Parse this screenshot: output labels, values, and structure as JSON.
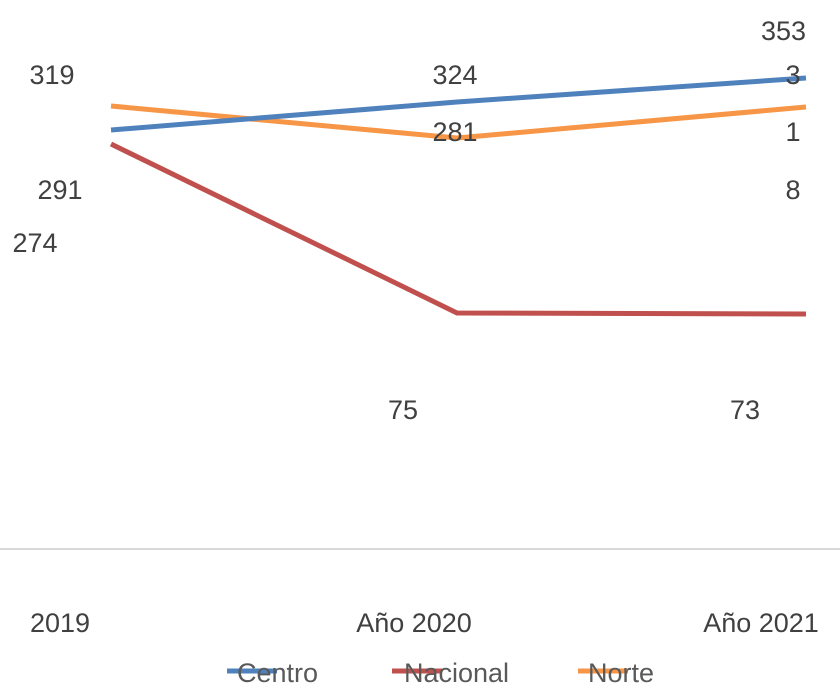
{
  "chart_data": {
    "type": "line",
    "categories": [
      "2019",
      "Año 2020",
      "Año 2021"
    ],
    "series": [
      {
        "name": "Centro",
        "values": [
          291,
          324,
          3533
        ],
        "color": "#4F81BD",
        "data_labels": [
          "291",
          "324",
          [
            "353",
            "3"
          ]
        ]
      },
      {
        "name": "Nacional",
        "values": [
          274,
          75,
          73
        ],
        "color": "#C0504D",
        "data_labels": [
          "274",
          "75",
          "73"
        ]
      },
      {
        "name": "Norte",
        "values": [
          319,
          281,
          3181
        ],
        "color": "#F79646",
        "data_labels": [
          "319",
          "281",
          [
            "1",
            "8"
          ]
        ]
      }
    ],
    "legend_position": "bottom",
    "grid": false
  }
}
